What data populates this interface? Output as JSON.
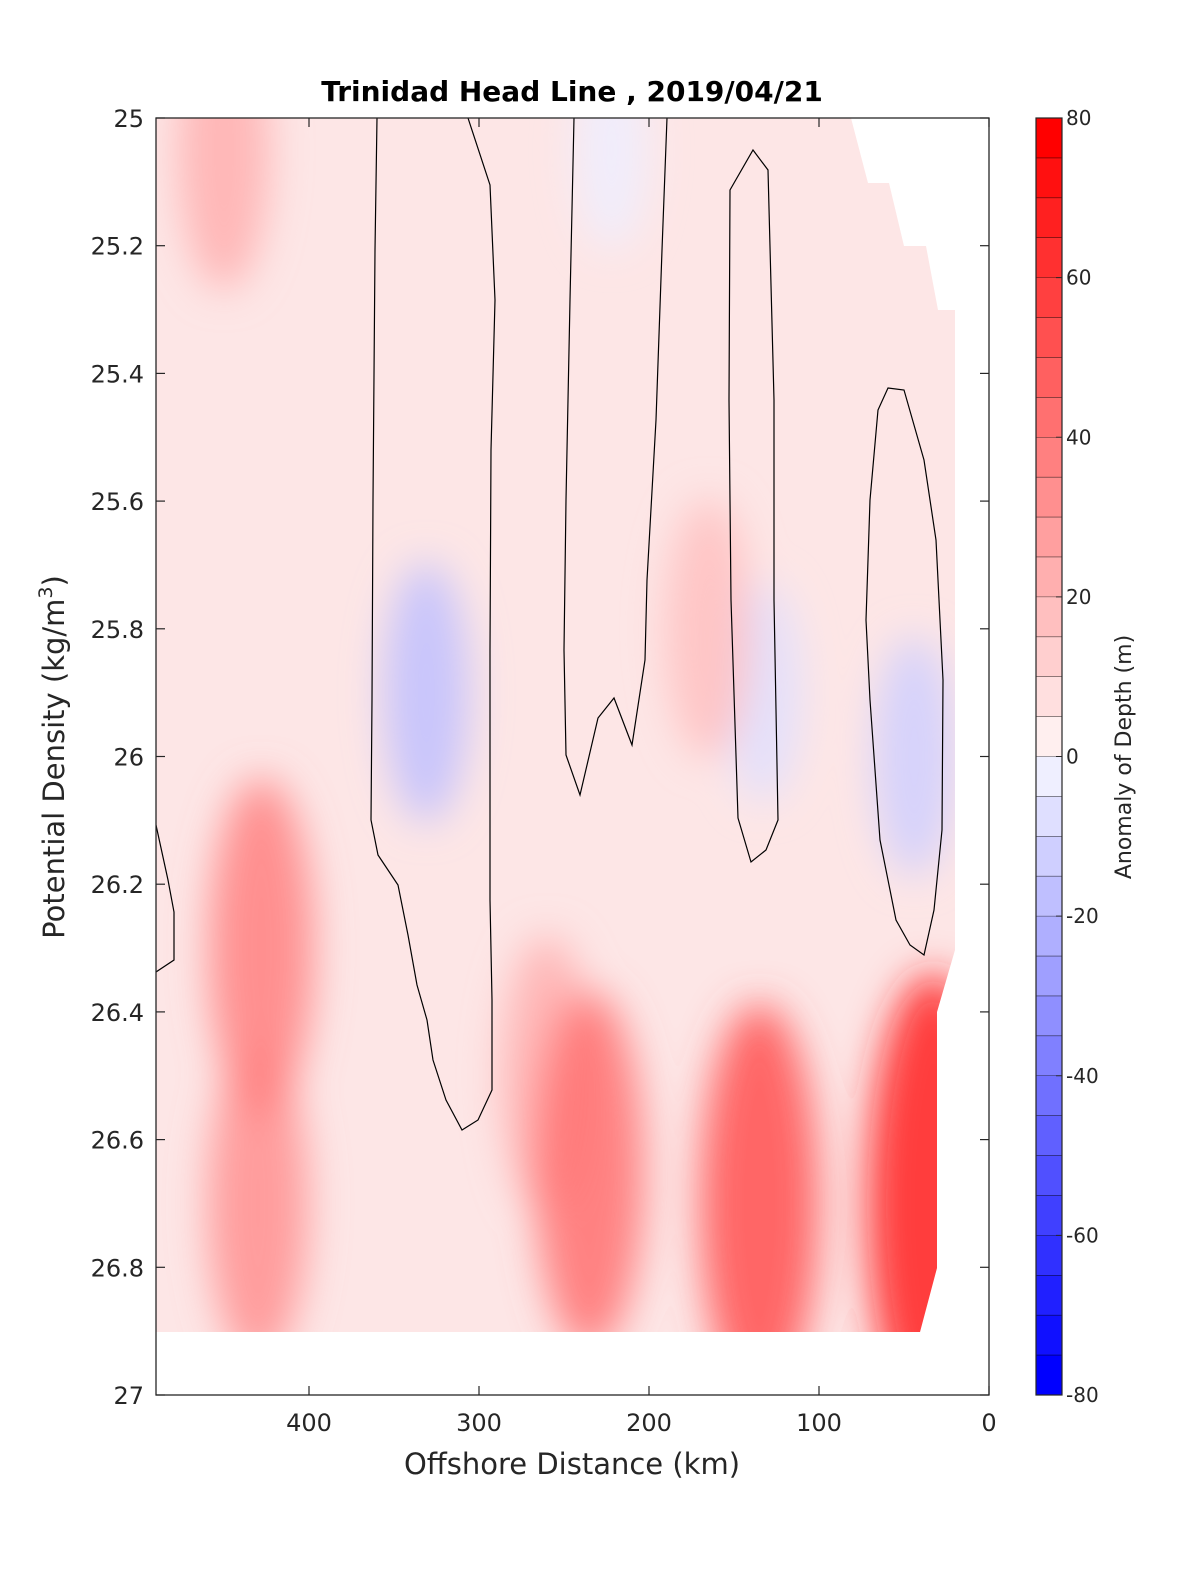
{
  "chart_data": {
    "type": "heatmap",
    "subtype": "filled-contour",
    "title": "Trinidad Head Line , 2019/04/21",
    "xlabel": "Offshore Distance (km)",
    "ylabel": "Potential Density (kg/m",
    "ylabel_superscript": "3",
    "ylabel_suffix": ")",
    "colorbar_label": "Anomaly of Depth (m)",
    "xlim": [
      490,
      0
    ],
    "ylim": [
      25,
      27
    ],
    "x_ticks": [
      400,
      300,
      200,
      100,
      0
    ],
    "y_ticks": [
      25,
      25.2,
      25.4,
      25.6,
      25.8,
      26,
      26.2,
      26.4,
      26.6,
      26.8,
      27
    ],
    "y_tick_labels": [
      "25",
      "25.2",
      "25.4",
      "25.6",
      "25.8",
      "26",
      "26.2",
      "26.4",
      "26.6",
      "26.8",
      "27"
    ],
    "x_reversed": true,
    "y_reversed": true,
    "colorbar_range": [
      -80,
      80
    ],
    "colorbar_ticks": [
      80,
      60,
      40,
      20,
      0,
      -20,
      -40,
      -60,
      -80
    ],
    "colorbar_step": 5,
    "colormap": {
      "negative": "#0000ff",
      "zero": "#ffffff",
      "positive": "#ff0000"
    },
    "grid": false,
    "contour_line_level": 0,
    "features": [
      {
        "kind": "negative",
        "x": 331,
        "y": 25.9,
        "min": -20
      },
      {
        "kind": "negative",
        "x": 222,
        "y": 25.05,
        "min": -5
      },
      {
        "kind": "negative",
        "x": 133,
        "y": 25.9,
        "min": -10
      },
      {
        "kind": "negative",
        "x": 44,
        "y": 26.0,
        "min": -15
      },
      {
        "kind": "positive",
        "x": 33,
        "y": 26.7,
        "max": 70
      },
      {
        "kind": "positive",
        "x": 135,
        "y": 26.7,
        "max": 55
      },
      {
        "kind": "positive",
        "x": 235,
        "y": 26.65,
        "max": 45
      },
      {
        "kind": "positive",
        "x": 428,
        "y": 26.3,
        "max": 40
      },
      {
        "kind": "positive",
        "x": 430,
        "y": 26.7,
        "max": 35
      },
      {
        "kind": "positive",
        "x": 260,
        "y": 26.5,
        "max": 25
      },
      {
        "kind": "positive",
        "x": 450,
        "y": 25.05,
        "max": 25
      },
      {
        "kind": "positive",
        "x": 165,
        "y": 25.8,
        "max": 20
      }
    ]
  }
}
